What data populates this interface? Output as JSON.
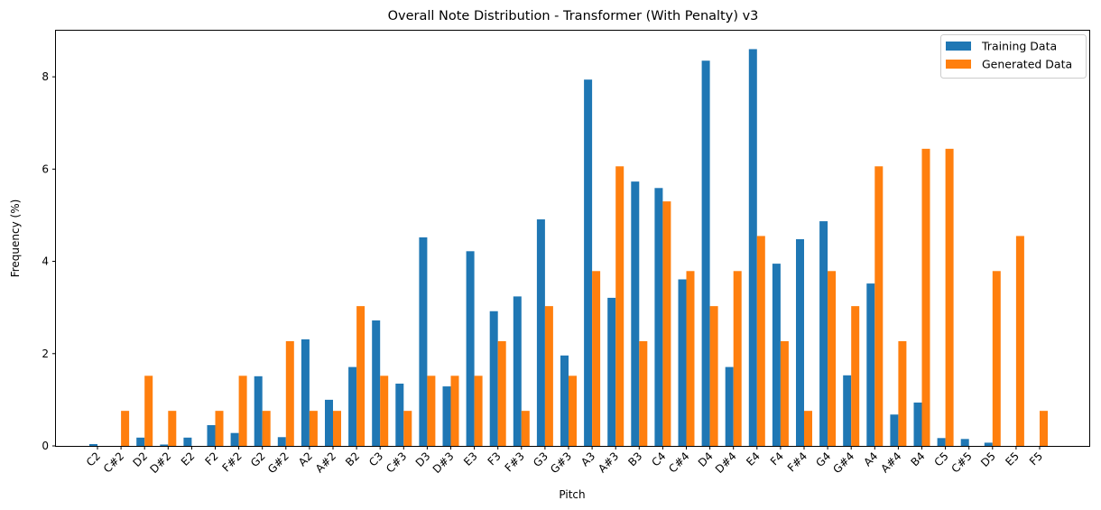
{
  "chart_data": {
    "type": "bar",
    "title": "Overall Note Distribution - Transformer (With Penalty) v3",
    "xlabel": "Pitch",
    "ylabel": "Frequency (%)",
    "ylim": [
      0,
      9
    ],
    "yticks": [
      0,
      2,
      4,
      6,
      8
    ],
    "grid": false,
    "legend_position": "top-right",
    "categories": [
      "C2",
      "C#2",
      "D2",
      "D#2",
      "E2",
      "F2",
      "F#2",
      "G2",
      "G#2",
      "A2",
      "A#2",
      "B2",
      "C3",
      "C#3",
      "D3",
      "D#3",
      "E3",
      "F3",
      "F#3",
      "G3",
      "G#3",
      "A3",
      "A#3",
      "B3",
      "C4",
      "C#4",
      "D4",
      "D#4",
      "E4",
      "F4",
      "F#4",
      "G4",
      "G#4",
      "A4",
      "A#4",
      "B4",
      "C5",
      "C#5",
      "D5",
      "E5",
      "F5"
    ],
    "series": [
      {
        "name": "Training Data",
        "color": "#1f77b4",
        "values": [
          0.04,
          0,
          0.18,
          0.03,
          0.18,
          0.45,
          0.28,
          1.51,
          0.19,
          2.31,
          1.0,
          1.71,
          2.72,
          1.35,
          4.52,
          1.29,
          4.22,
          2.92,
          3.24,
          4.91,
          1.96,
          7.94,
          3.21,
          5.73,
          5.59,
          3.61,
          8.35,
          1.71,
          8.6,
          3.95,
          4.48,
          4.87,
          1.53,
          3.52,
          0.68,
          0.94,
          0.17,
          0.15,
          0.07,
          0,
          0
        ]
      },
      {
        "name": "Generated Data",
        "color": "#ff7f0e",
        "values": [
          0,
          0.76,
          1.52,
          0.76,
          0,
          0.76,
          1.52,
          0.76,
          2.27,
          0.76,
          0.76,
          3.03,
          1.52,
          0.76,
          1.52,
          1.52,
          1.52,
          2.27,
          0.76,
          3.03,
          1.52,
          3.79,
          6.06,
          2.27,
          5.3,
          3.79,
          3.03,
          3.79,
          4.55,
          2.27,
          0.76,
          3.79,
          3.03,
          6.06,
          2.27,
          6.44,
          6.44,
          0,
          3.79,
          4.55,
          0.76
        ]
      }
    ]
  }
}
